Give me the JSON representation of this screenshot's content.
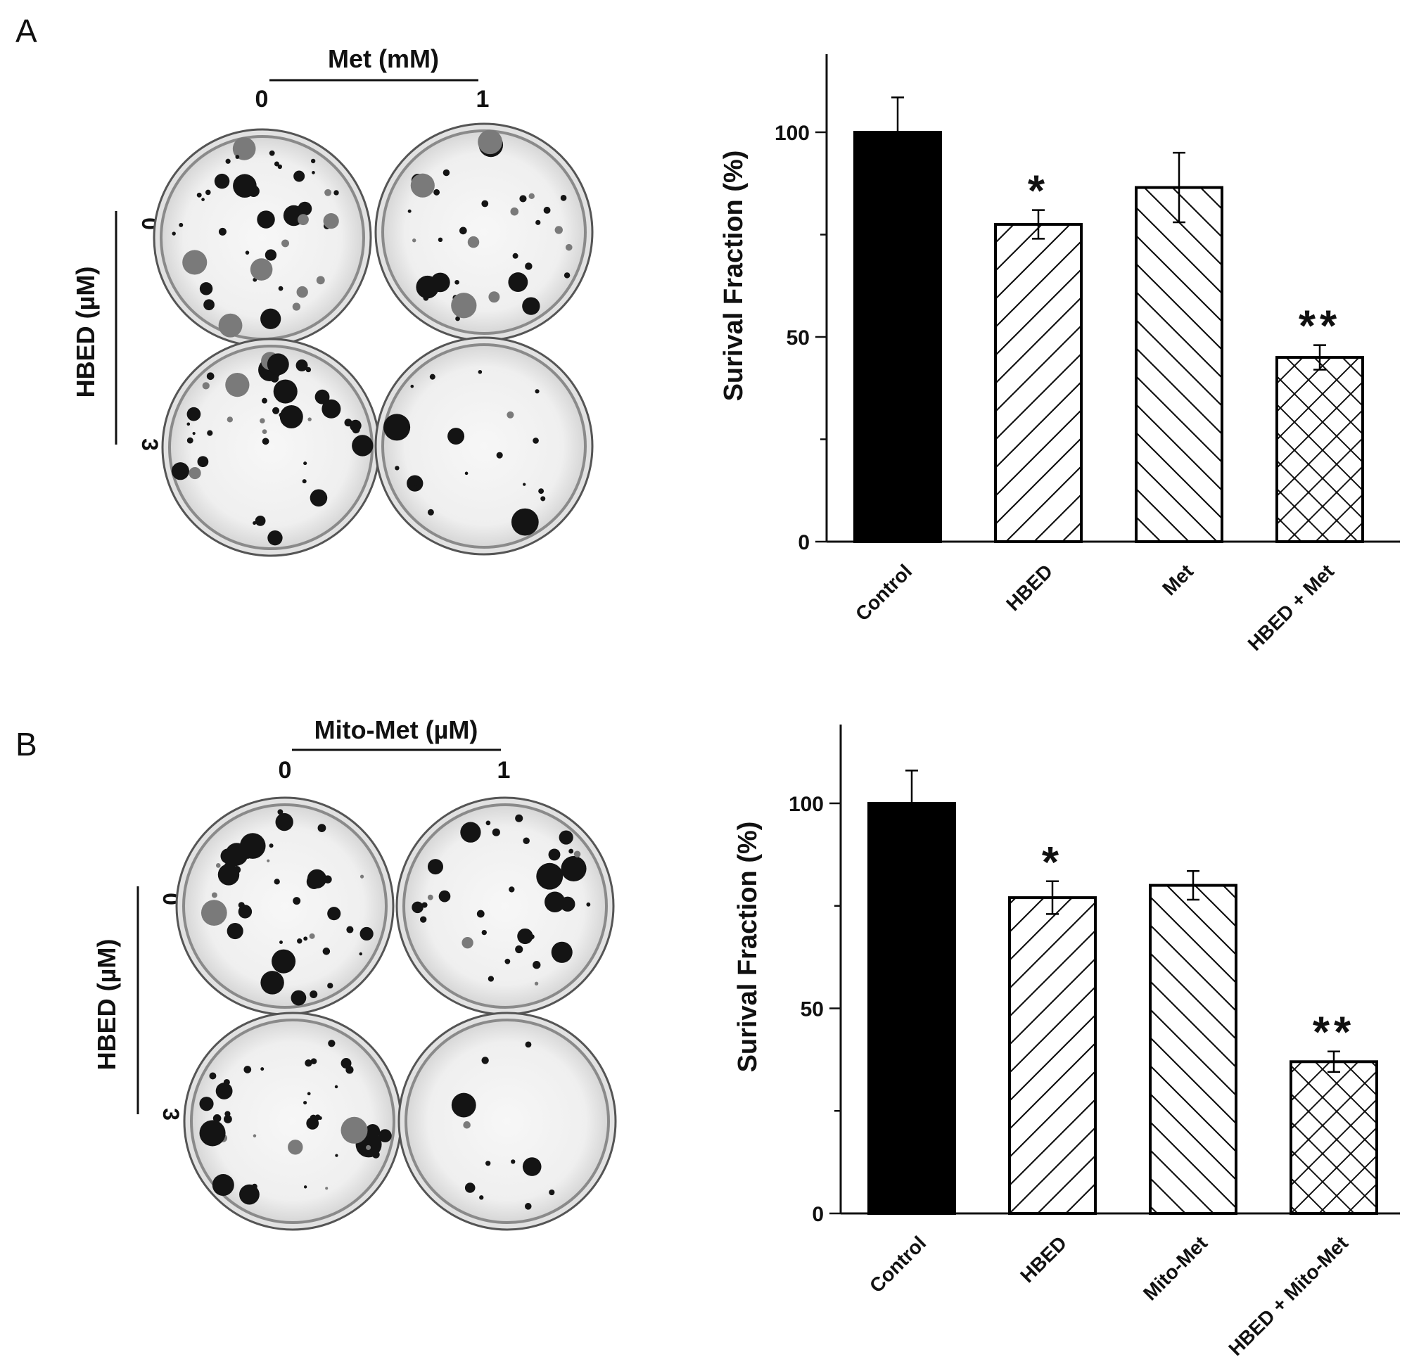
{
  "panels": [
    {
      "letter": "A",
      "dishes": {
        "col_title": "Met (mM)",
        "col_levels": [
          "0",
          "1"
        ],
        "row_title": "HBED (µM)",
        "row_levels": [
          "0",
          "3"
        ]
      },
      "chart_data": {
        "type": "bar",
        "categories": [
          "Control",
          "HBED",
          "Met",
          "HBED + Met"
        ],
        "values": [
          100,
          77.5,
          86.5,
          45
        ],
        "errors": [
          8.5,
          3.5,
          8.5,
          3
        ],
        "significance": [
          "",
          "*",
          "",
          "**"
        ],
        "patterns": [
          "solid",
          "diag-up",
          "diag-down",
          "crosshatch"
        ],
        "ylabel": "Surival Fraction (%)",
        "yticks": [
          0,
          50,
          100
        ],
        "ylim": [
          0,
          118
        ],
        "grid": false
      }
    },
    {
      "letter": "B",
      "dishes": {
        "col_title": "Mito-Met (µM)",
        "col_levels": [
          "0",
          "1"
        ],
        "row_title": "HBED (µM)",
        "row_levels": [
          "0",
          "3"
        ]
      },
      "chart_data": {
        "type": "bar",
        "categories": [
          "Control",
          "HBED",
          "Mito-Met",
          "HBED + Mito-Met"
        ],
        "values": [
          100,
          77,
          80,
          37
        ],
        "errors": [
          8,
          4,
          3.5,
          2.5
        ],
        "significance": [
          "",
          "*",
          "",
          "**"
        ],
        "patterns": [
          "solid",
          "diag-up",
          "diag-down",
          "crosshatch"
        ],
        "ylabel": "Surival Fraction (%)",
        "yticks": [
          0,
          50,
          100
        ],
        "ylim": [
          0,
          118
        ],
        "grid": false
      }
    }
  ]
}
